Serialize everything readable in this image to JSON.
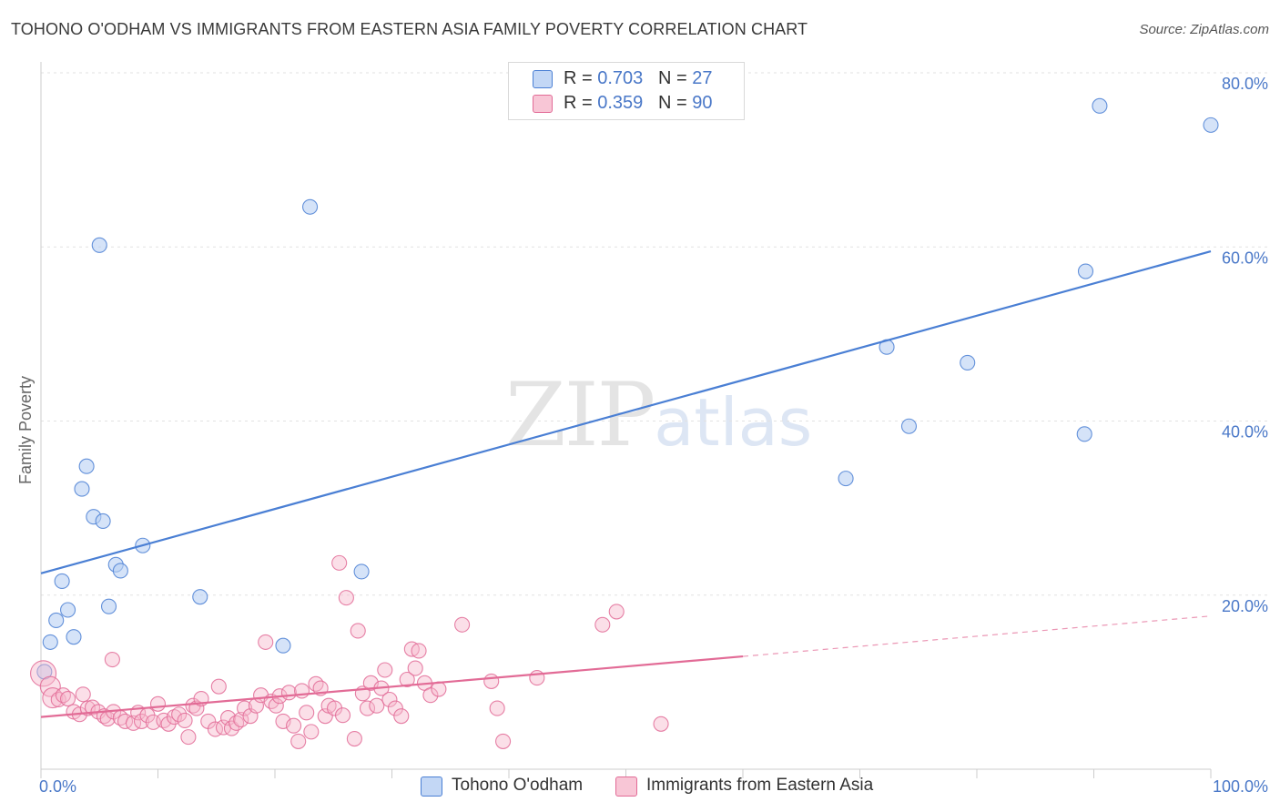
{
  "chart_data": {
    "type": "scatter",
    "title": "TOHONO O'ODHAM VS IMMIGRANTS FROM EASTERN ASIA FAMILY POVERTY CORRELATION CHART",
    "source": "Source: ZipAtlas.com",
    "xlabel": "",
    "ylabel": "Family Poverty",
    "xlim": [
      0,
      100
    ],
    "ylim": [
      0,
      80
    ],
    "x_ticks": [
      "0.0%",
      "100.0%"
    ],
    "y_ticks": [
      {
        "value": 20,
        "label": "20.0%"
      },
      {
        "value": 40,
        "label": "40.0%"
      },
      {
        "value": 60,
        "label": "60.0%"
      },
      {
        "value": 80,
        "label": "80.0%"
      }
    ],
    "watermark": {
      "zip": "ZIP",
      "atlas": "atlas"
    },
    "legend": [
      {
        "r_label": "R =",
        "r": "0.703",
        "n_label": "N =",
        "n": "27"
      },
      {
        "r_label": "R =",
        "r": "0.359",
        "n_label": "N =",
        "n": "90"
      }
    ],
    "series": [
      {
        "name": "Tohono O'odham",
        "color": "#4a7fd4",
        "fill": "#b9d0f3",
        "trend": {
          "x0": 0,
          "y0": 22.5,
          "x1": 100,
          "y1": 59.5,
          "solid_until": 100
        },
        "points": [
          [
            0.3,
            11.2
          ],
          [
            0.8,
            14.6
          ],
          [
            1.3,
            17.1
          ],
          [
            1.8,
            21.6
          ],
          [
            2.3,
            18.3
          ],
          [
            2.8,
            15.2
          ],
          [
            3.5,
            32.2
          ],
          [
            3.9,
            34.8
          ],
          [
            4.5,
            29.0
          ],
          [
            5.0,
            60.2
          ],
          [
            5.3,
            28.5
          ],
          [
            5.8,
            18.7
          ],
          [
            6.4,
            23.5
          ],
          [
            6.8,
            22.8
          ],
          [
            8.7,
            25.7
          ],
          [
            13.6,
            19.8
          ],
          [
            20.7,
            14.2
          ],
          [
            23.0,
            64.6
          ],
          [
            27.4,
            22.7
          ],
          [
            68.8,
            33.4
          ],
          [
            72.3,
            48.5
          ],
          [
            74.2,
            39.4
          ],
          [
            79.2,
            46.7
          ],
          [
            89.2,
            38.5
          ],
          [
            89.3,
            57.2
          ],
          [
            90.5,
            76.2
          ],
          [
            100.0,
            74.0
          ]
        ]
      },
      {
        "name": "Immigrants from Eastern Asia",
        "color": "#e26b96",
        "fill": "#f6b7cb",
        "trend": {
          "x0": 0,
          "y0": 6.0,
          "x1": 100,
          "y1": 17.6,
          "solid_until": 60
        },
        "points": [
          [
            0.2,
            11.0
          ],
          [
            0.8,
            9.5
          ],
          [
            1.0,
            8.2
          ],
          [
            1.5,
            8.0
          ],
          [
            1.9,
            8.5
          ],
          [
            2.3,
            8.1
          ],
          [
            2.8,
            6.6
          ],
          [
            3.3,
            6.3
          ],
          [
            3.6,
            8.6
          ],
          [
            4.0,
            7.0
          ],
          [
            4.4,
            7.1
          ],
          [
            4.9,
            6.6
          ],
          [
            5.4,
            6.1
          ],
          [
            5.7,
            5.8
          ],
          [
            6.1,
            12.6
          ],
          [
            6.2,
            6.6
          ],
          [
            6.8,
            5.9
          ],
          [
            7.2,
            5.5
          ],
          [
            7.9,
            5.3
          ],
          [
            8.3,
            6.5
          ],
          [
            8.6,
            5.5
          ],
          [
            9.1,
            6.2
          ],
          [
            9.6,
            5.4
          ],
          [
            10.0,
            7.5
          ],
          [
            10.5,
            5.6
          ],
          [
            10.9,
            5.2
          ],
          [
            11.4,
            6.0
          ],
          [
            11.8,
            6.3
          ],
          [
            12.3,
            5.6
          ],
          [
            12.6,
            3.7
          ],
          [
            13.0,
            7.3
          ],
          [
            13.3,
            7.0
          ],
          [
            13.7,
            8.1
          ],
          [
            14.3,
            5.5
          ],
          [
            14.9,
            4.6
          ],
          [
            15.2,
            9.5
          ],
          [
            15.6,
            4.8
          ],
          [
            16.0,
            5.9
          ],
          [
            16.3,
            4.7
          ],
          [
            16.7,
            5.3
          ],
          [
            17.1,
            5.7
          ],
          [
            17.4,
            7.0
          ],
          [
            17.9,
            6.1
          ],
          [
            18.4,
            7.3
          ],
          [
            18.8,
            8.5
          ],
          [
            19.2,
            14.6
          ],
          [
            19.7,
            7.8
          ],
          [
            20.1,
            7.3
          ],
          [
            20.4,
            8.4
          ],
          [
            20.7,
            5.5
          ],
          [
            21.2,
            8.8
          ],
          [
            21.6,
            5.0
          ],
          [
            22.0,
            3.2
          ],
          [
            22.3,
            9.0
          ],
          [
            22.7,
            6.5
          ],
          [
            23.1,
            4.3
          ],
          [
            23.5,
            9.8
          ],
          [
            23.9,
            9.3
          ],
          [
            24.3,
            6.1
          ],
          [
            24.6,
            7.3
          ],
          [
            25.1,
            7.0
          ],
          [
            25.5,
            23.7
          ],
          [
            25.8,
            6.2
          ],
          [
            26.1,
            19.7
          ],
          [
            26.8,
            3.5
          ],
          [
            27.1,
            15.9
          ],
          [
            27.5,
            8.7
          ],
          [
            27.9,
            7.0
          ],
          [
            28.2,
            9.9
          ],
          [
            28.7,
            7.3
          ],
          [
            29.1,
            9.3
          ],
          [
            29.4,
            11.4
          ],
          [
            29.8,
            8.0
          ],
          [
            30.3,
            7.0
          ],
          [
            30.8,
            6.1
          ],
          [
            31.3,
            10.3
          ],
          [
            31.7,
            13.8
          ],
          [
            32.0,
            11.6
          ],
          [
            32.3,
            13.6
          ],
          [
            32.8,
            9.9
          ],
          [
            33.3,
            8.5
          ],
          [
            34.0,
            9.2
          ],
          [
            36.0,
            16.6
          ],
          [
            38.5,
            10.1
          ],
          [
            39.0,
            7.0
          ],
          [
            39.5,
            3.2
          ],
          [
            42.4,
            10.5
          ],
          [
            48.0,
            16.6
          ],
          [
            49.2,
            18.1
          ],
          [
            53.0,
            5.2
          ]
        ]
      }
    ]
  },
  "bottom_legend": [
    "Tohono O'odham",
    "Immigrants from Eastern Asia"
  ]
}
